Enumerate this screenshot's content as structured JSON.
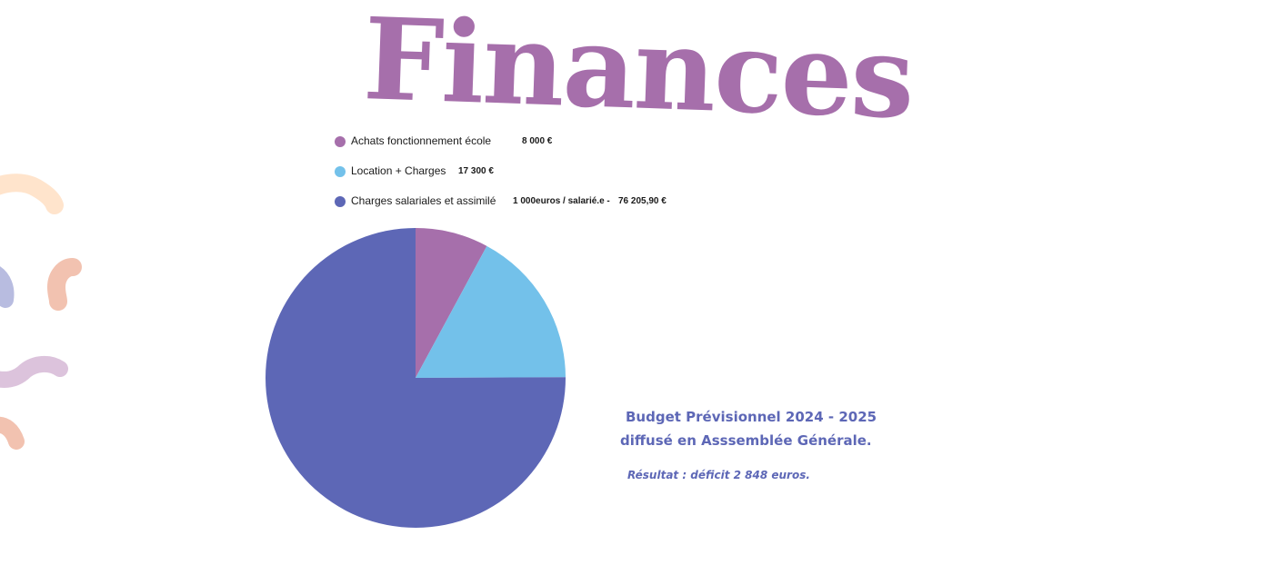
{
  "page": {
    "title": "Finances"
  },
  "colors": {
    "title": "#a66fab",
    "caption": "#5d67b6",
    "decor_peach": "#ffe4cc",
    "decor_salmon": "#f2c2b0",
    "decor_lavender": "#b8bce0",
    "decor_lilac": "#dcc3dc"
  },
  "legend": {
    "items": [
      {
        "label": "Achats fonctionnement école",
        "value": "8  000 €",
        "extra": "",
        "color": "#a66fab"
      },
      {
        "label": "Location + Charges",
        "value": "17 300 €",
        "extra": "",
        "color": "#73c1ea"
      },
      {
        "label": "Charges salariales et assimilé",
        "value": "76 205,90 €",
        "extra": "1 000euros / salarié.e -",
        "color": "#5d67b6"
      }
    ]
  },
  "chart_data": {
    "type": "pie",
    "title": "",
    "categories": [
      "Achats fonctionnement école",
      "Location + Charges",
      "Charges salariales et assimilé"
    ],
    "values": [
      8000,
      17300,
      76205.9
    ],
    "colors": [
      "#a66fab",
      "#73c1ea",
      "#5d67b6"
    ],
    "legend": "top-left"
  },
  "caption": {
    "line1": "Budget Prévisionnel 2024 - 2025",
    "line2": "diffusé en Asssemblée Générale.",
    "result": "Résultat : déficit 2 848 euros."
  }
}
